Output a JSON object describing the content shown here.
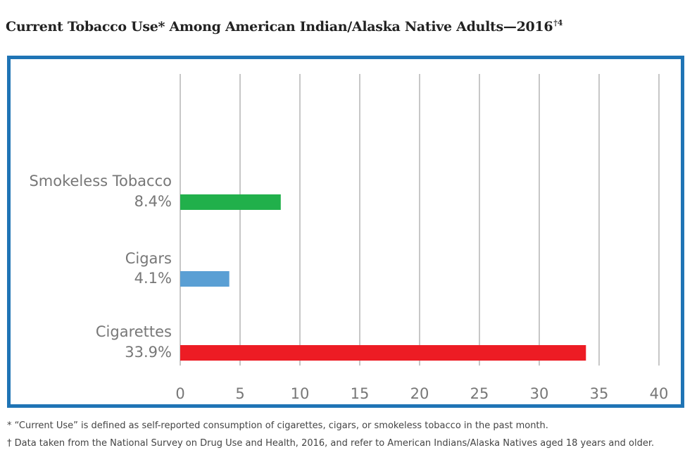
{
  "title": {
    "text": "Current Tobacco Use* Among American Indian/Alaska Native Adults—2016",
    "sup": "†4"
  },
  "chart_data": {
    "type": "bar",
    "orientation": "horizontal",
    "categories": [
      "Smokeless Tobacco",
      "Cigars",
      "Cigarettes"
    ],
    "value_labels": [
      "8.4%",
      "4.1%",
      "33.9%"
    ],
    "values": [
      8.4,
      4.1,
      33.9
    ],
    "colors": [
      "#21b04b",
      "#5a9fd4",
      "#ed1c24"
    ],
    "xlim": [
      0,
      40
    ],
    "xticks": [
      0,
      5,
      10,
      15,
      20,
      25,
      30,
      35,
      40
    ],
    "grid": true
  },
  "footnotes": [
    "* “Current Use” is defined as self-reported consumption of cigarettes, cigars, or smokeless tobacco in the past month.",
    "† Data taken from the National Survey on Drug Use and Health, 2016, and refer to American Indians/Alaska Natives aged 18 years and older."
  ]
}
